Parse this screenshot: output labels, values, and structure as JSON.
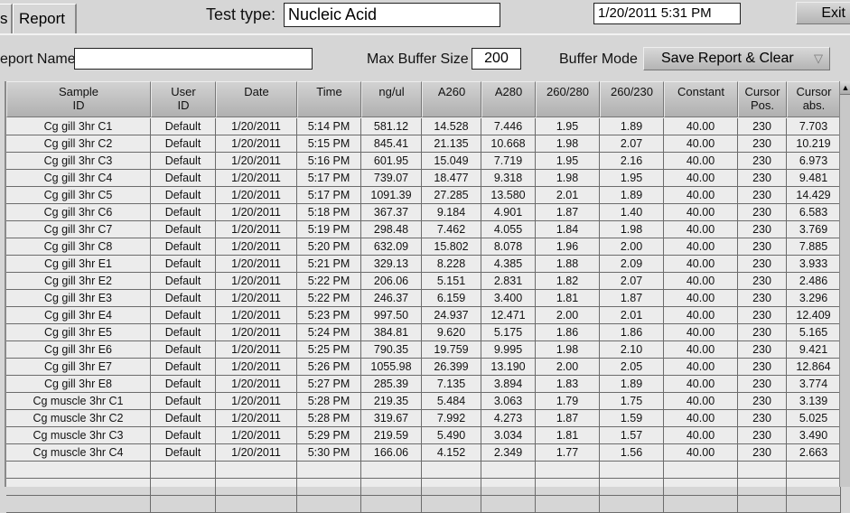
{
  "tabs": [
    {
      "label": "s"
    },
    {
      "label": "Report"
    }
  ],
  "header": {
    "test_type_label": "Test type:",
    "test_type_value": "Nucleic Acid",
    "datetime": "1/20/2011  5:31 PM",
    "exit_label": "Exit"
  },
  "controls": {
    "report_name_label": "eport Name",
    "report_name_value": "",
    "max_buffer_label": "Max Buffer Size",
    "max_buffer_value": "200",
    "buffer_mode_label": "Buffer Mode",
    "buffer_mode_value": "Save Report & Clear"
  },
  "table": {
    "columns": [
      "Sample\nID",
      "User\nID",
      "Date",
      "Time",
      "ng/ul",
      "A260",
      "A280",
      "260/280",
      "260/230",
      "Constant",
      "Cursor\nPos.",
      "Cursor\nabs."
    ],
    "rows": [
      [
        "Cg gill 3hr C1",
        "Default",
        "1/20/2011",
        "5:14 PM",
        "581.12",
        "14.528",
        "7.446",
        "1.95",
        "1.89",
        "40.00",
        "230",
        "7.703"
      ],
      [
        "Cg gill 3hr C2",
        "Default",
        "1/20/2011",
        "5:15 PM",
        "845.41",
        "21.135",
        "10.668",
        "1.98",
        "2.07",
        "40.00",
        "230",
        "10.219"
      ],
      [
        "Cg gill 3hr C3",
        "Default",
        "1/20/2011",
        "5:16 PM",
        "601.95",
        "15.049",
        "7.719",
        "1.95",
        "2.16",
        "40.00",
        "230",
        "6.973"
      ],
      [
        "Cg gill 3hr C4",
        "Default",
        "1/20/2011",
        "5:17 PM",
        "739.07",
        "18.477",
        "9.318",
        "1.98",
        "1.95",
        "40.00",
        "230",
        "9.481"
      ],
      [
        "Cg gill 3hr C5",
        "Default",
        "1/20/2011",
        "5:17 PM",
        "1091.39",
        "27.285",
        "13.580",
        "2.01",
        "1.89",
        "40.00",
        "230",
        "14.429"
      ],
      [
        "Cg gill 3hr C6",
        "Default",
        "1/20/2011",
        "5:18 PM",
        "367.37",
        "9.184",
        "4.901",
        "1.87",
        "1.40",
        "40.00",
        "230",
        "6.583"
      ],
      [
        "Cg gill 3hr C7",
        "Default",
        "1/20/2011",
        "5:19 PM",
        "298.48",
        "7.462",
        "4.055",
        "1.84",
        "1.98",
        "40.00",
        "230",
        "3.769"
      ],
      [
        "Cg gill 3hr C8",
        "Default",
        "1/20/2011",
        "5:20 PM",
        "632.09",
        "15.802",
        "8.078",
        "1.96",
        "2.00",
        "40.00",
        "230",
        "7.885"
      ],
      [
        "Cg gill 3hr E1",
        "Default",
        "1/20/2011",
        "5:21 PM",
        "329.13",
        "8.228",
        "4.385",
        "1.88",
        "2.09",
        "40.00",
        "230",
        "3.933"
      ],
      [
        "Cg gill 3hr E2",
        "Default",
        "1/20/2011",
        "5:22 PM",
        "206.06",
        "5.151",
        "2.831",
        "1.82",
        "2.07",
        "40.00",
        "230",
        "2.486"
      ],
      [
        "Cg gill 3hr E3",
        "Default",
        "1/20/2011",
        "5:22 PM",
        "246.37",
        "6.159",
        "3.400",
        "1.81",
        "1.87",
        "40.00",
        "230",
        "3.296"
      ],
      [
        "Cg gill 3hr E4",
        "Default",
        "1/20/2011",
        "5:23 PM",
        "997.50",
        "24.937",
        "12.471",
        "2.00",
        "2.01",
        "40.00",
        "230",
        "12.409"
      ],
      [
        "Cg gill 3hr E5",
        "Default",
        "1/20/2011",
        "5:24 PM",
        "384.81",
        "9.620",
        "5.175",
        "1.86",
        "1.86",
        "40.00",
        "230",
        "5.165"
      ],
      [
        "Cg gill 3hr E6",
        "Default",
        "1/20/2011",
        "5:25 PM",
        "790.35",
        "19.759",
        "9.995",
        "1.98",
        "2.10",
        "40.00",
        "230",
        "9.421"
      ],
      [
        "Cg gill 3hr E7",
        "Default",
        "1/20/2011",
        "5:26 PM",
        "1055.98",
        "26.399",
        "13.190",
        "2.00",
        "2.05",
        "40.00",
        "230",
        "12.864"
      ],
      [
        "Cg gill 3hr E8",
        "Default",
        "1/20/2011",
        "5:27 PM",
        "285.39",
        "7.135",
        "3.894",
        "1.83",
        "1.89",
        "40.00",
        "230",
        "3.774"
      ],
      [
        "Cg muscle 3hr C1",
        "Default",
        "1/20/2011",
        "5:28 PM",
        "219.35",
        "5.484",
        "3.063",
        "1.79",
        "1.75",
        "40.00",
        "230",
        "3.139"
      ],
      [
        "Cg muscle 3hr C2",
        "Default",
        "1/20/2011",
        "5:28 PM",
        "319.67",
        "7.992",
        "4.273",
        "1.87",
        "1.59",
        "40.00",
        "230",
        "5.025"
      ],
      [
        "Cg muscle 3hr C3",
        "Default",
        "1/20/2011",
        "5:29 PM",
        "219.59",
        "5.490",
        "3.034",
        "1.81",
        "1.57",
        "40.00",
        "230",
        "3.490"
      ],
      [
        "Cg muscle 3hr C4",
        "Default",
        "1/20/2011",
        "5:30 PM",
        "166.06",
        "4.152",
        "2.349",
        "1.77",
        "1.56",
        "40.00",
        "230",
        "2.663"
      ]
    ]
  }
}
